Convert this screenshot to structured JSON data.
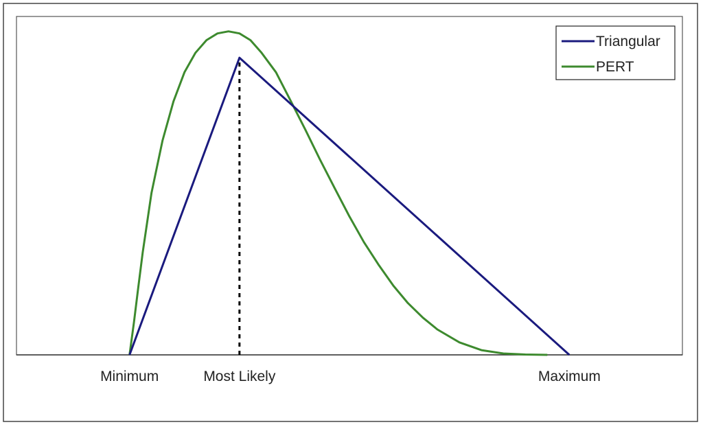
{
  "chart_data": {
    "type": "line",
    "title": "",
    "xlabel": "",
    "ylabel": "",
    "x_tick_labels": [
      {
        "label": "Minimum",
        "x": 0.0
      },
      {
        "label": "Most Likely",
        "x": 0.25
      },
      {
        "label": "Maximum",
        "x": 1.0
      }
    ],
    "xlim": [
      -0.257,
      1.257
    ],
    "ylim": [
      0,
      1.0
    ],
    "grid": false,
    "legend": {
      "position": "top-right"
    },
    "mode_marker": {
      "x": 0.25,
      "style": "dotted",
      "color": "#000000"
    },
    "series": [
      {
        "name": "Triangular",
        "color": "#1a1a7e",
        "x": [
          0.0,
          0.25,
          1.0
        ],
        "y": [
          0.0,
          0.878,
          0.0
        ]
      },
      {
        "name": "PERT",
        "color": "#3d8a2e",
        "x": [
          0.0,
          0.01,
          0.02,
          0.03,
          0.05,
          0.075,
          0.1,
          0.125,
          0.15,
          0.175,
          0.2,
          0.225,
          0.25,
          0.275,
          0.3,
          0.333,
          0.367,
          0.4,
          0.433,
          0.467,
          0.5,
          0.533,
          0.567,
          0.6,
          0.633,
          0.667,
          0.7,
          0.75,
          0.8,
          0.85,
          0.9,
          0.95
        ],
        "y": [
          0.0,
          0.096,
          0.201,
          0.303,
          0.479,
          0.633,
          0.749,
          0.835,
          0.893,
          0.93,
          0.95,
          0.956,
          0.95,
          0.93,
          0.893,
          0.835,
          0.749,
          0.665,
          0.577,
          0.491,
          0.409,
          0.333,
          0.265,
          0.204,
          0.153,
          0.11,
          0.075,
          0.037,
          0.014,
          0.004,
          0.001,
          0.0
        ]
      }
    ]
  }
}
